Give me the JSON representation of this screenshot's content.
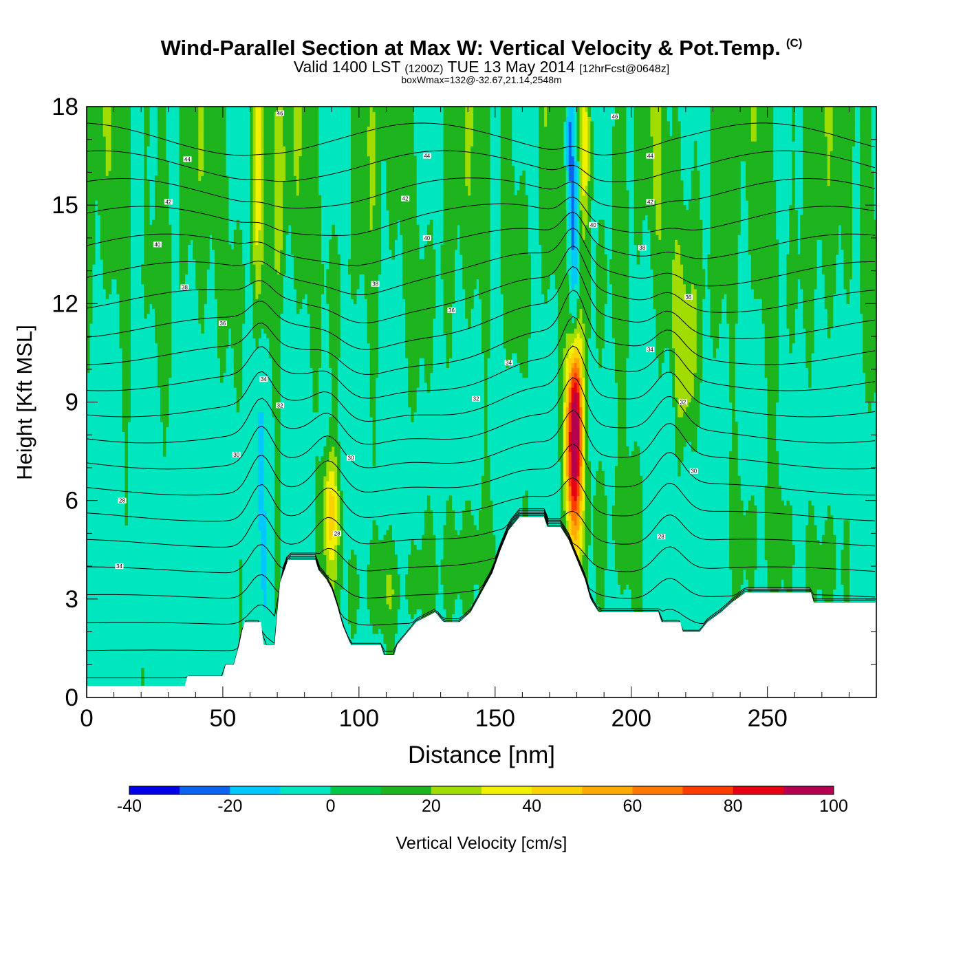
{
  "header": {
    "title": "Wind-Parallel Section at Max W: Vertical Velocity & Pot.Temp.",
    "title_tag": "(C)",
    "valid_prefix": "Valid 1400 LST",
    "valid_utc": "(1200Z)",
    "valid_date": "TUE 13 May 2014",
    "forecast": "[12hrFcst@0648z]",
    "box_info": "boxWmax=132@-32.67,21.14,2548m"
  },
  "chart_data": {
    "type": "heatmap",
    "xlabel": "Distance [nm]",
    "ylabel": "Height [Kft MSL]",
    "xlim": [
      0,
      290
    ],
    "ylim": [
      0,
      18
    ],
    "x_ticks": [
      "0",
      "50",
      "100",
      "150",
      "200",
      "250"
    ],
    "y_ticks": [
      "0",
      "3",
      "6",
      "9",
      "12",
      "15",
      "18"
    ],
    "colorbar": {
      "label": "Vertical Velocity [cm/s]",
      "levels": [
        -40,
        -30,
        -20,
        -10,
        0,
        10,
        20,
        30,
        40,
        50,
        60,
        70,
        80,
        90,
        100
      ],
      "tick_labels": [
        "-40",
        "-20",
        "0",
        "20",
        "40",
        "60",
        "80",
        "100"
      ],
      "colors": [
        "#0000e8",
        "#0a64f0",
        "#00c8ff",
        "#00e6be",
        "#00c848",
        "#1eb41e",
        "#a0dc00",
        "#f0f000",
        "#fad200",
        "#ffaa00",
        "#ff7800",
        "#ff3c00",
        "#e60014",
        "#b40050"
      ]
    },
    "background_color": "#00e6be",
    "terrain": [
      [
        0,
        0.35
      ],
      [
        36,
        0.35
      ],
      [
        37,
        0.65
      ],
      [
        50,
        0.65
      ],
      [
        51,
        1.0
      ],
      [
        54,
        1.0
      ],
      [
        55,
        1.3
      ],
      [
        56,
        1.6
      ],
      [
        57,
        2.0
      ],
      [
        58,
        2.3
      ],
      [
        64,
        2.3
      ],
      [
        65,
        1.6
      ],
      [
        69,
        1.6
      ],
      [
        70,
        2.6
      ],
      [
        71,
        3.5
      ],
      [
        74,
        4.2
      ],
      [
        84,
        4.2
      ],
      [
        85,
        3.9
      ],
      [
        88,
        3.6
      ],
      [
        90,
        3.3
      ],
      [
        92,
        2.8
      ],
      [
        94,
        2.2
      ],
      [
        97,
        1.6
      ],
      [
        108,
        1.6
      ],
      [
        109,
        1.3
      ],
      [
        113,
        1.3
      ],
      [
        114,
        1.6
      ],
      [
        117,
        1.9
      ],
      [
        121,
        2.3
      ],
      [
        128,
        2.6
      ],
      [
        131,
        2.3
      ],
      [
        137,
        2.3
      ],
      [
        141,
        2.6
      ],
      [
        145,
        3.2
      ],
      [
        149,
        3.8
      ],
      [
        152,
        4.5
      ],
      [
        155,
        5.1
      ],
      [
        159,
        5.5
      ],
      [
        168,
        5.5
      ],
      [
        169,
        5.2
      ],
      [
        174,
        5.2
      ],
      [
        177,
        4.8
      ],
      [
        180,
        4.2
      ],
      [
        183,
        3.6
      ],
      [
        185,
        3.0
      ],
      [
        188,
        2.6
      ],
      [
        210,
        2.6
      ],
      [
        211,
        2.3
      ],
      [
        218,
        2.3
      ],
      [
        219,
        2.0
      ],
      [
        225,
        2.0
      ],
      [
        228,
        2.3
      ],
      [
        233,
        2.6
      ],
      [
        237,
        2.9
      ],
      [
        242,
        3.2
      ],
      [
        266,
        3.2
      ],
      [
        267,
        2.9
      ],
      [
        290,
        2.9
      ]
    ],
    "isentropes": {
      "spacing": 1,
      "labels": [
        {
          "x": 12,
          "y": 4.0,
          "text": "34"
        },
        {
          "x": 13,
          "y": 6.0,
          "text": "28"
        },
        {
          "x": 26,
          "y": 13.8,
          "text": "40"
        },
        {
          "x": 30,
          "y": 15.1,
          "text": "42"
        },
        {
          "x": 36,
          "y": 12.5,
          "text": "38"
        },
        {
          "x": 37,
          "y": 16.4,
          "text": "44"
        },
        {
          "x": 50,
          "y": 11.4,
          "text": "36"
        },
        {
          "x": 55,
          "y": 7.4,
          "text": "30"
        },
        {
          "x": 65,
          "y": 9.7,
          "text": "34"
        },
        {
          "x": 71,
          "y": 8.9,
          "text": "32"
        },
        {
          "x": 71,
          "y": 17.8,
          "text": "46"
        },
        {
          "x": 92,
          "y": 5.0,
          "text": "28"
        },
        {
          "x": 97,
          "y": 7.3,
          "text": "30"
        },
        {
          "x": 106,
          "y": 12.6,
          "text": "38"
        },
        {
          "x": 117,
          "y": 15.2,
          "text": "42"
        },
        {
          "x": 125,
          "y": 14.0,
          "text": "40"
        },
        {
          "x": 125,
          "y": 16.5,
          "text": "44"
        },
        {
          "x": 134,
          "y": 11.8,
          "text": "36"
        },
        {
          "x": 143,
          "y": 9.1,
          "text": "32"
        },
        {
          "x": 155,
          "y": 10.2,
          "text": "34"
        },
        {
          "x": 186,
          "y": 14.4,
          "text": "40"
        },
        {
          "x": 194,
          "y": 17.7,
          "text": "46"
        },
        {
          "x": 204,
          "y": 13.7,
          "text": "38"
        },
        {
          "x": 207,
          "y": 15.1,
          "text": "42"
        },
        {
          "x": 207,
          "y": 16.5,
          "text": "44"
        },
        {
          "x": 207,
          "y": 10.6,
          "text": "34"
        },
        {
          "x": 211,
          "y": 4.9,
          "text": "28"
        },
        {
          "x": 221,
          "y": 12.2,
          "text": "36"
        },
        {
          "x": 219,
          "y": 9.0,
          "text": "32"
        },
        {
          "x": 223,
          "y": 6.9,
          "text": "30"
        }
      ]
    }
  }
}
